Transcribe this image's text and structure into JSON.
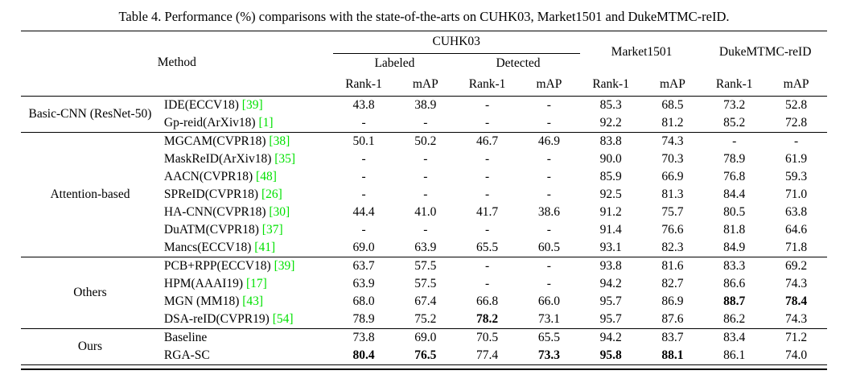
{
  "caption": "Table 4. Performance (%) comparisons with the state-of-the-arts on CUHK03, Market1501 and DukeMTMC-reID.",
  "colors": {
    "citation": "#00e100"
  },
  "header": {
    "method": "Method",
    "cuhk03": "CUHK03",
    "labeled": "Labeled",
    "detected": "Detected",
    "market1501": "Market1501",
    "duke": "DukeMTMC-reID",
    "rank1": "Rank-1",
    "map": "mAP"
  },
  "table": {
    "groups": [
      {
        "label": "Basic-CNN (ResNet-50)",
        "rows": [
          {
            "method": "IDE(ECCV18)",
            "cite": "[39]",
            "values": [
              "43.8",
              "38.9",
              "-",
              "-",
              "85.3",
              "68.5",
              "73.2",
              "52.8"
            ],
            "bold": []
          },
          {
            "method": "Gp-reid(ArXiv18)",
            "cite": "[1]",
            "values": [
              "-",
              "-",
              "-",
              "-",
              "92.2",
              "81.2",
              "85.2",
              "72.8"
            ],
            "bold": []
          }
        ]
      },
      {
        "label": "Attention-based",
        "rows": [
          {
            "method": "MGCAM(CVPR18)",
            "cite": "[38]",
            "values": [
              "50.1",
              "50.2",
              "46.7",
              "46.9",
              "83.8",
              "74.3",
              "-",
              "-"
            ],
            "bold": []
          },
          {
            "method": "MaskReID(ArXiv18)",
            "cite": "[35]",
            "values": [
              "-",
              "-",
              "-",
              "-",
              "90.0",
              "70.3",
              "78.9",
              "61.9"
            ],
            "bold": []
          },
          {
            "method": "AACN(CVPR18)",
            "cite": "[48]",
            "values": [
              "-",
              "-",
              "-",
              "-",
              "85.9",
              "66.9",
              "76.8",
              "59.3"
            ],
            "bold": []
          },
          {
            "method": "SPReID(CVPR18)",
            "cite": "[26]",
            "values": [
              "-",
              "-",
              "-",
              "-",
              "92.5",
              "81.3",
              "84.4",
              "71.0"
            ],
            "bold": []
          },
          {
            "method": "HA-CNN(CVPR18)",
            "cite": "[30]",
            "values": [
              "44.4",
              "41.0",
              "41.7",
              "38.6",
              "91.2",
              "75.7",
              "80.5",
              "63.8"
            ],
            "bold": []
          },
          {
            "method": "DuATM(CVPR18)",
            "cite": "[37]",
            "values": [
              "-",
              "-",
              "-",
              "-",
              "91.4",
              "76.6",
              "81.8",
              "64.6"
            ],
            "bold": []
          },
          {
            "method": "Mancs(ECCV18)",
            "cite": "[41]",
            "values": [
              "69.0",
              "63.9",
              "65.5",
              "60.5",
              "93.1",
              "82.3",
              "84.9",
              "71.8"
            ],
            "bold": []
          }
        ]
      },
      {
        "label": "Others",
        "rows": [
          {
            "method": "PCB+RPP(ECCV18)",
            "cite": "[39]",
            "values": [
              "63.7",
              "57.5",
              "-",
              "-",
              "93.8",
              "81.6",
              "83.3",
              "69.2"
            ],
            "bold": []
          },
          {
            "method": "HPM(AAAI19)",
            "cite": "[17]",
            "values": [
              "63.9",
              "57.5",
              "-",
              "-",
              "94.2",
              "82.7",
              "86.6",
              "74.3"
            ],
            "bold": []
          },
          {
            "method": "MGN (MM18)",
            "cite": "[43]",
            "values": [
              "68.0",
              "67.4",
              "66.8",
              "66.0",
              "95.7",
              "86.9",
              "88.7",
              "78.4"
            ],
            "bold": [
              6,
              7
            ]
          },
          {
            "method": "DSA-reID(CVPR19)",
            "cite": "[54]",
            "values": [
              "78.9",
              "75.2",
              "78.2",
              "73.1",
              "95.7",
              "87.6",
              "86.2",
              "74.3"
            ],
            "bold": [
              2
            ]
          }
        ]
      },
      {
        "label": "Ours",
        "rows": [
          {
            "method": "Baseline",
            "cite": "",
            "values": [
              "73.8",
              "69.0",
              "70.5",
              "65.5",
              "94.2",
              "83.7",
              "83.4",
              "71.2"
            ],
            "bold": []
          },
          {
            "method": "RGA-SC",
            "cite": "",
            "values": [
              "80.4",
              "76.5",
              "77.4",
              "73.3",
              "95.8",
              "88.1",
              "86.1",
              "74.0"
            ],
            "bold": [
              0,
              1,
              3,
              4,
              5
            ]
          }
        ]
      }
    ]
  }
}
